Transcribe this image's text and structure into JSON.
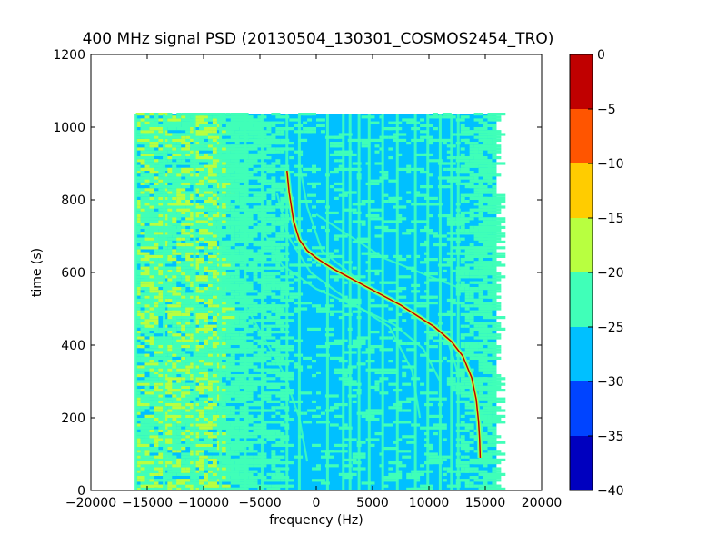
{
  "chart_data": {
    "type": "heatmap",
    "title": "400 MHz signal PSD (20130504_130301_COSMOS2454_TRO)",
    "xlabel": "frequency (Hz)",
    "ylabel": "time (s)",
    "xlim": [
      -20000,
      20000
    ],
    "ylim": [
      0,
      1200
    ],
    "xticks": [
      "−20000",
      "−15000",
      "−10000",
      "−5000",
      "0",
      "5000",
      "10000",
      "15000",
      "20000"
    ],
    "yticks": [
      "0",
      "200",
      "400",
      "600",
      "800",
      "1000",
      "1200"
    ],
    "data_extent": {
      "freq": [
        -16000,
        16000
      ],
      "time": [
        0,
        1035
      ]
    },
    "colorbar": {
      "levels": [
        -40,
        -35,
        -30,
        -25,
        -20,
        -15,
        -10,
        -5,
        0
      ],
      "ticks": [
        "−40",
        "−35",
        "−30",
        "−25",
        "−20",
        "−15",
        "−10",
        "−5",
        "0"
      ],
      "colors": [
        "#0000bf",
        "#0044ff",
        "#00c0ff",
        "#40ffb8",
        "#b8ff40",
        "#ffcc00",
        "#ff5500",
        "#c00000"
      ]
    },
    "tones_hz": [
      -16000,
      -13500,
      -10800,
      -8500,
      -6300,
      -4800,
      -2600,
      -1500,
      1000,
      2400,
      3000,
      3800,
      4700,
      5900,
      7200,
      8800,
      9900,
      11000,
      12000,
      12600
    ],
    "main_trace": [
      [
        -2600,
        880
      ],
      [
        -2400,
        820
      ],
      [
        -2000,
        740
      ],
      [
        -1500,
        690
      ],
      [
        -800,
        660
      ],
      [
        0,
        640
      ],
      [
        1500,
        610
      ],
      [
        3000,
        585
      ],
      [
        4500,
        560
      ],
      [
        6000,
        535
      ],
      [
        7500,
        510
      ],
      [
        9000,
        480
      ],
      [
        10500,
        450
      ],
      [
        12000,
        410
      ],
      [
        13000,
        370
      ],
      [
        13800,
        310
      ],
      [
        14200,
        250
      ],
      [
        14400,
        190
      ],
      [
        14500,
        140
      ],
      [
        14550,
        90
      ]
    ],
    "secondary_traces": [
      [
        [
          -4800,
          720
        ],
        [
          -3000,
          620
        ],
        [
          0,
          555
        ],
        [
          4000,
          500
        ],
        [
          7000,
          455
        ],
        [
          9500,
          390
        ],
        [
          11000,
          300
        ]
      ],
      [
        [
          -3500,
          820
        ],
        [
          -2500,
          700
        ],
        [
          -500,
          600
        ],
        [
          3000,
          520
        ],
        [
          6500,
          450
        ],
        [
          8500,
          330
        ],
        [
          9200,
          200
        ]
      ],
      [
        [
          -1500,
          900
        ],
        [
          -800,
          780
        ],
        [
          500,
          660
        ],
        [
          4500,
          560
        ],
        [
          8500,
          495
        ],
        [
          11500,
          430
        ],
        [
          12500,
          330
        ]
      ],
      [
        [
          -6500,
          520
        ],
        [
          -5000,
          440
        ],
        [
          -3000,
          330
        ],
        [
          -1500,
          200
        ],
        [
          -800,
          80
        ]
      ],
      [
        [
          0,
          760
        ],
        [
          3000,
          700
        ],
        [
          6000,
          640
        ],
        [
          10000,
          590
        ],
        [
          12500,
          560
        ]
      ]
    ]
  }
}
